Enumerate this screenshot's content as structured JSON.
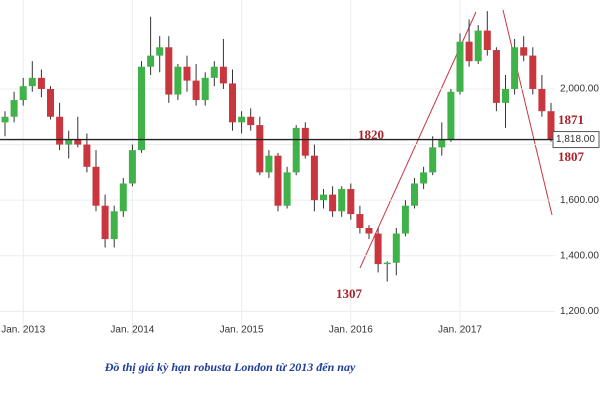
{
  "chart_data": {
    "type": "candlestick",
    "caption": "Đồ thị giá kỳ hạn robusta London từ 2013 đến nay",
    "categories": [
      null,
      null,
      "Jan. 2013",
      null,
      null,
      null,
      null,
      null,
      null,
      null,
      null,
      null,
      null,
      null,
      "Jan. 2014",
      null,
      null,
      null,
      null,
      null,
      null,
      null,
      null,
      null,
      null,
      null,
      "Jan. 2015",
      null,
      null,
      null,
      null,
      null,
      null,
      null,
      null,
      null,
      null,
      null,
      "Jan. 2016",
      null,
      null,
      null,
      null,
      null,
      null,
      null,
      null,
      null,
      null,
      null,
      "Jan. 2017",
      null,
      null,
      null,
      null,
      null,
      null,
      null,
      null,
      null,
      null
    ],
    "open": [
      1880,
      1900,
      1960,
      2010,
      2040,
      2000,
      1900,
      1800,
      1820,
      1800,
      1720,
      1580,
      1460,
      1560,
      1660,
      1780,
      2080,
      2120,
      2150,
      1980,
      2080,
      2030,
      1960,
      2040,
      2080,
      2020,
      1880,
      1900,
      1870,
      1700,
      1760,
      1580,
      1700,
      1860,
      1760,
      1600,
      1620,
      1560,
      1640,
      1550,
      1500,
      1480,
      1370,
      1375,
      1480,
      1580,
      1660,
      1700,
      1790,
      1820,
      1990,
      2170,
      2100,
      2210,
      2140,
      1950,
      2000,
      2150,
      2120,
      2000,
      1920
    ],
    "high": [
      1920,
      1990,
      2040,
      2100,
      2070,
      2010,
      1950,
      1850,
      1900,
      1840,
      1780,
      1620,
      1580,
      1680,
      1800,
      2100,
      2260,
      2190,
      2190,
      2090,
      2120,
      2090,
      2060,
      2100,
      2180,
      2070,
      1920,
      1930,
      1900,
      1780,
      1770,
      1720,
      1870,
      1880,
      1800,
      1640,
      1650,
      1650,
      1660,
      1580,
      1510,
      1500,
      1380,
      1500,
      1600,
      1680,
      1720,
      1830,
      1880,
      2000,
      2200,
      2250,
      2230,
      2280,
      2150,
      2050,
      2180,
      2190,
      2150,
      2050,
      1950
    ],
    "low": [
      1830,
      1880,
      1940,
      1990,
      1970,
      1890,
      1780,
      1750,
      1790,
      1700,
      1560,
      1430,
      1430,
      1540,
      1650,
      1770,
      2050,
      2060,
      1950,
      1960,
      1990,
      1940,
      1940,
      2010,
      2000,
      1850,
      1840,
      1850,
      1690,
      1680,
      1560,
      1570,
      1690,
      1750,
      1560,
      1570,
      1540,
      1540,
      1530,
      1480,
      1460,
      1340,
      1307,
      1330,
      1470,
      1570,
      1640,
      1690,
      1760,
      1810,
      1980,
      2080,
      2090,
      2120,
      1920,
      1860,
      1980,
      2100,
      1980,
      1900,
      1810
    ],
    "close": [
      1900,
      1960,
      2010,
      2040,
      2000,
      1900,
      1800,
      1820,
      1800,
      1720,
      1580,
      1460,
      1560,
      1660,
      1780,
      2080,
      2120,
      2150,
      1980,
      2080,
      2030,
      1960,
      2040,
      2080,
      2020,
      1880,
      1900,
      1870,
      1700,
      1760,
      1580,
      1700,
      1860,
      1760,
      1600,
      1620,
      1560,
      1640,
      1550,
      1500,
      1480,
      1370,
      1375,
      1480,
      1580,
      1660,
      1700,
      1790,
      1820,
      1990,
      2170,
      2100,
      2210,
      2140,
      1950,
      2000,
      2150,
      2120,
      2000,
      1920,
      1818
    ],
    "up_color": "#3fb24a",
    "down_color": "#c9363e",
    "ylim": [
      1115,
      2320
    ],
    "yticks": [
      {
        "value": 1200,
        "label": "1,200.00"
      },
      {
        "value": 1400,
        "label": "1,400.00"
      },
      {
        "value": 1600,
        "label": "1,600.00"
      },
      {
        "value": 1800,
        "label": "1,800.00"
      },
      {
        "value": 2000,
        "label": "2,000.00"
      }
    ],
    "last_price": {
      "value": 1818,
      "label": "1,818.00"
    },
    "annotations": [
      "1820",
      "1871",
      "1807",
      "1307"
    ],
    "grid": true
  }
}
